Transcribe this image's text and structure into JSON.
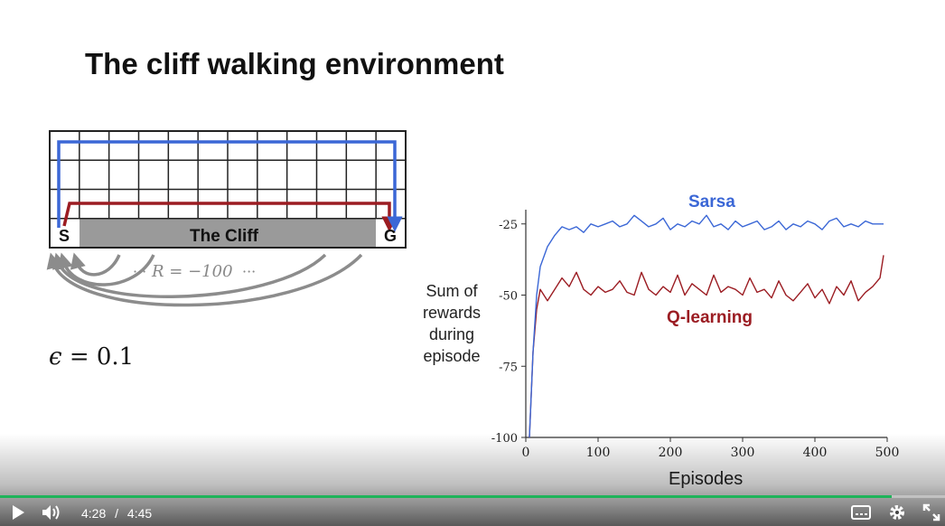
{
  "slide": {
    "title": "The cliff walking environment",
    "cliff_label": "The Cliff",
    "start_label": "S",
    "goal_label": "G",
    "reward_text": "R = −100",
    "epsilon_symbol": "ϵ",
    "epsilon_value": "= 0.1",
    "colors": {
      "sarsa": "#3b67d6",
      "qlearning": "#9b1c22",
      "cliff": "#9a9a9a",
      "arc": "#8c8c8c"
    }
  },
  "chart": {
    "ylabel_lines": [
      "Sum of",
      "rewards",
      "during",
      "episode"
    ],
    "xlabel": "Episodes",
    "series_labels": {
      "sarsa": "Sarsa",
      "qlearning": "Q-learning"
    }
  },
  "chart_data": {
    "type": "line",
    "xlabel": "Episodes",
    "ylabel": "Sum of rewards during episode",
    "xlim": [
      0,
      500
    ],
    "ylim": [
      -100,
      -20
    ],
    "xticks": [
      0,
      100,
      200,
      300,
      400,
      500
    ],
    "yticks": [
      -100,
      -75,
      -50,
      -25
    ],
    "series": [
      {
        "name": "Sarsa",
        "x": [
          5,
          10,
          15,
          20,
          30,
          40,
          50,
          60,
          70,
          80,
          90,
          100,
          110,
          120,
          130,
          140,
          150,
          160,
          170,
          180,
          190,
          200,
          210,
          220,
          230,
          240,
          250,
          260,
          270,
          280,
          290,
          300,
          310,
          320,
          330,
          340,
          350,
          360,
          370,
          380,
          390,
          400,
          410,
          420,
          430,
          440,
          450,
          460,
          470,
          480,
          490,
          495
        ],
        "y": [
          -100,
          -70,
          -50,
          -40,
          -33,
          -29,
          -26,
          -27,
          -26,
          -28,
          -25,
          -26,
          -25,
          -24,
          -26,
          -25,
          -22,
          -24,
          -26,
          -25,
          -23,
          -27,
          -25,
          -26,
          -24,
          -25,
          -22,
          -26,
          -25,
          -27,
          -24,
          -26,
          -25,
          -24,
          -27,
          -26,
          -24,
          -27,
          -25,
          -26,
          -24,
          -25,
          -27,
          -24,
          -23,
          -26,
          -25,
          -26,
          -24,
          -25,
          -25,
          -25
        ]
      },
      {
        "name": "Q-learning",
        "x": [
          5,
          10,
          15,
          20,
          25,
          30,
          40,
          50,
          60,
          70,
          80,
          90,
          100,
          110,
          120,
          130,
          140,
          150,
          160,
          170,
          180,
          190,
          200,
          210,
          220,
          230,
          240,
          250,
          260,
          270,
          280,
          290,
          300,
          310,
          320,
          330,
          340,
          350,
          360,
          370,
          380,
          390,
          400,
          410,
          420,
          430,
          440,
          450,
          460,
          470,
          480,
          490,
          495
        ],
        "y": [
          -100,
          -70,
          -55,
          -48,
          -50,
          -52,
          -48,
          -44,
          -47,
          -42,
          -48,
          -50,
          -47,
          -49,
          -48,
          -45,
          -49,
          -50,
          -42,
          -48,
          -50,
          -47,
          -49,
          -43,
          -50,
          -46,
          -48,
          -50,
          -43,
          -49,
          -47,
          -48,
          -50,
          -44,
          -49,
          -48,
          -51,
          -45,
          -50,
          -52,
          -49,
          -46,
          -51,
          -48,
          -53,
          -47,
          -50,
          -45,
          -52,
          -49,
          -47,
          -44,
          -36
        ]
      }
    ]
  },
  "player": {
    "current_time": "4:28",
    "separator": "/",
    "duration": "4:45",
    "progress": 0.944,
    "icons": {
      "play": "play-icon",
      "volume": "volume-icon",
      "captions": "captions-icon",
      "settings": "gear-icon",
      "fullscreen": "fullscreen-icon"
    }
  }
}
